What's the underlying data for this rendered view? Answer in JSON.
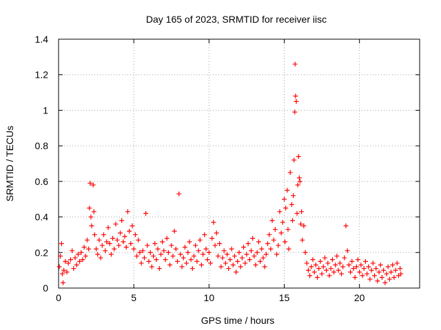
{
  "chart_data": {
    "type": "scatter",
    "title": "Day 165 of 2023, SRMTID for receiver iisc",
    "xlabel": "GPS time / hours",
    "ylabel": "SRMTID / TECUs",
    "xlim": [
      0,
      24
    ],
    "ylim": [
      0,
      1.4
    ],
    "x_ticks": [
      0,
      5,
      10,
      15,
      20
    ],
    "x_tick_labels": [
      "0",
      "5",
      "10",
      "15",
      "20"
    ],
    "y_ticks": [
      0,
      0.2,
      0.4,
      0.6,
      0.8,
      1,
      1.2,
      1.4
    ],
    "y_tick_labels": [
      "0",
      "0.2",
      "0.4",
      "0.6",
      "0.8",
      "1",
      "1.2",
      "1.4"
    ],
    "grid": true,
    "marker": "+",
    "colors": {
      "series": "#ff0000",
      "axes": "#000000",
      "grid": "#a0a0a0"
    },
    "series": [
      {
        "name": "SRMTID",
        "points": [
          [
            0.05,
            0.12
          ],
          [
            0.12,
            0.18
          ],
          [
            0.2,
            0.25
          ],
          [
            0.25,
            0.08
          ],
          [
            0.3,
            0.03
          ],
          [
            0.35,
            0.1
          ],
          [
            0.45,
            0.15
          ],
          [
            0.55,
            0.09
          ],
          [
            0.65,
            0.14
          ],
          [
            0.8,
            0.16
          ],
          [
            0.9,
            0.21
          ],
          [
            1.0,
            0.11
          ],
          [
            1.1,
            0.17
          ],
          [
            1.2,
            0.13
          ],
          [
            1.3,
            0.19
          ],
          [
            1.4,
            0.15
          ],
          [
            1.5,
            0.2
          ],
          [
            1.6,
            0.16
          ],
          [
            1.7,
            0.23
          ],
          [
            1.8,
            0.18
          ],
          [
            1.9,
            0.27
          ],
          [
            2.0,
            0.22
          ],
          [
            2.05,
            0.45
          ],
          [
            2.1,
            0.59
          ],
          [
            2.15,
            0.4
          ],
          [
            2.2,
            0.35
          ],
          [
            2.3,
            0.58
          ],
          [
            2.35,
            0.43
          ],
          [
            2.4,
            0.3
          ],
          [
            2.5,
            0.22
          ],
          [
            2.6,
            0.19
          ],
          [
            2.7,
            0.27
          ],
          [
            2.8,
            0.17
          ],
          [
            2.9,
            0.24
          ],
          [
            3.0,
            0.3
          ],
          [
            3.1,
            0.21
          ],
          [
            3.2,
            0.26
          ],
          [
            3.3,
            0.34
          ],
          [
            3.4,
            0.25
          ],
          [
            3.5,
            0.19
          ],
          [
            3.6,
            0.28
          ],
          [
            3.7,
            0.22
          ],
          [
            3.8,
            0.36
          ],
          [
            3.9,
            0.27
          ],
          [
            4.0,
            0.24
          ],
          [
            4.1,
            0.31
          ],
          [
            4.2,
            0.38
          ],
          [
            4.3,
            0.26
          ],
          [
            4.4,
            0.29
          ],
          [
            4.5,
            0.23
          ],
          [
            4.6,
            0.43
          ],
          [
            4.7,
            0.32
          ],
          [
            4.8,
            0.25
          ],
          [
            4.9,
            0.35
          ],
          [
            5.0,
            0.22
          ],
          [
            5.1,
            0.3
          ],
          [
            5.2,
            0.18
          ],
          [
            5.3,
            0.27
          ],
          [
            5.4,
            0.2
          ],
          [
            5.5,
            0.14
          ],
          [
            5.6,
            0.21
          ],
          [
            5.7,
            0.17
          ],
          [
            5.8,
            0.42
          ],
          [
            5.9,
            0.24
          ],
          [
            6.0,
            0.15
          ],
          [
            6.1,
            0.2
          ],
          [
            6.2,
            0.12
          ],
          [
            6.3,
            0.18
          ],
          [
            6.4,
            0.25
          ],
          [
            6.5,
            0.16
          ],
          [
            6.6,
            0.22
          ],
          [
            6.7,
            0.11
          ],
          [
            6.8,
            0.19
          ],
          [
            6.9,
            0.26
          ],
          [
            7.0,
            0.21
          ],
          [
            7.1,
            0.16
          ],
          [
            7.2,
            0.28
          ],
          [
            7.3,
            0.2
          ],
          [
            7.4,
            0.13
          ],
          [
            7.5,
            0.24
          ],
          [
            7.6,
            0.18
          ],
          [
            7.7,
            0.32
          ],
          [
            7.8,
            0.22
          ],
          [
            7.9,
            0.15
          ],
          [
            8.0,
            0.53
          ],
          [
            8.1,
            0.19
          ],
          [
            8.2,
            0.12
          ],
          [
            8.3,
            0.17
          ],
          [
            8.4,
            0.23
          ],
          [
            8.5,
            0.14
          ],
          [
            8.6,
            0.2
          ],
          [
            8.7,
            0.26
          ],
          [
            8.8,
            0.16
          ],
          [
            8.9,
            0.11
          ],
          [
            9.0,
            0.18
          ],
          [
            9.1,
            0.24
          ],
          [
            9.2,
            0.15
          ],
          [
            9.3,
            0.21
          ],
          [
            9.4,
            0.27
          ],
          [
            9.5,
            0.13
          ],
          [
            9.6,
            0.19
          ],
          [
            9.7,
            0.3
          ],
          [
            9.8,
            0.22
          ],
          [
            9.9,
            0.16
          ],
          [
            10.0,
            0.2
          ],
          [
            10.1,
            0.14
          ],
          [
            10.2,
            0.28
          ],
          [
            10.3,
            0.37
          ],
          [
            10.4,
            0.24
          ],
          [
            10.5,
            0.31
          ],
          [
            10.6,
            0.18
          ],
          [
            10.7,
            0.25
          ],
          [
            10.8,
            0.12
          ],
          [
            10.9,
            0.17
          ],
          [
            11.0,
            0.21
          ],
          [
            11.1,
            0.14
          ],
          [
            11.2,
            0.19
          ],
          [
            11.3,
            0.11
          ],
          [
            11.4,
            0.16
          ],
          [
            11.5,
            0.22
          ],
          [
            11.6,
            0.13
          ],
          [
            11.7,
            0.18
          ],
          [
            11.8,
            0.09
          ],
          [
            11.9,
            0.15
          ],
          [
            12.0,
            0.2
          ],
          [
            12.1,
            0.12
          ],
          [
            12.2,
            0.17
          ],
          [
            12.3,
            0.23
          ],
          [
            12.4,
            0.14
          ],
          [
            12.5,
            0.19
          ],
          [
            12.6,
            0.25
          ],
          [
            12.7,
            0.16
          ],
          [
            12.8,
            0.21
          ],
          [
            12.9,
            0.28
          ],
          [
            13.0,
            0.18
          ],
          [
            13.1,
            0.13
          ],
          [
            13.2,
            0.2
          ],
          [
            13.3,
            0.26
          ],
          [
            13.4,
            0.15
          ],
          [
            13.5,
            0.22
          ],
          [
            13.6,
            0.17
          ],
          [
            13.7,
            0.12
          ],
          [
            13.8,
            0.19
          ],
          [
            13.9,
            0.25
          ],
          [
            14.0,
            0.3
          ],
          [
            14.1,
            0.22
          ],
          [
            14.2,
            0.38
          ],
          [
            14.3,
            0.27
          ],
          [
            14.4,
            0.33
          ],
          [
            14.5,
            0.19
          ],
          [
            14.6,
            0.24
          ],
          [
            14.7,
            0.43
          ],
          [
            14.8,
            0.31
          ],
          [
            14.9,
            0.37
          ],
          [
            15.0,
            0.5
          ],
          [
            15.05,
            0.26
          ],
          [
            15.1,
            0.45
          ],
          [
            15.2,
            0.55
          ],
          [
            15.25,
            0.33
          ],
          [
            15.3,
            0.22
          ],
          [
            15.4,
            0.65
          ],
          [
            15.5,
            0.47
          ],
          [
            15.55,
            0.38
          ],
          [
            15.6,
            0.52
          ],
          [
            15.65,
            0.72
          ],
          [
            15.7,
            0.99
          ],
          [
            15.72,
            1.26
          ],
          [
            15.75,
            1.08
          ],
          [
            15.8,
            1.05
          ],
          [
            15.85,
            0.42
          ],
          [
            15.9,
            0.58
          ],
          [
            15.95,
            0.74
          ],
          [
            16.0,
            0.62
          ],
          [
            16.05,
            0.6
          ],
          [
            16.1,
            0.36
          ],
          [
            16.15,
            0.43
          ],
          [
            16.2,
            0.27
          ],
          [
            16.3,
            0.35
          ],
          [
            16.4,
            0.2
          ],
          [
            16.5,
            0.14
          ],
          [
            16.6,
            0.1
          ],
          [
            16.7,
            0.07
          ],
          [
            16.8,
            0.12
          ],
          [
            16.9,
            0.16
          ],
          [
            17.0,
            0.09
          ],
          [
            17.1,
            0.13
          ],
          [
            17.2,
            0.06
          ],
          [
            17.3,
            0.11
          ],
          [
            17.4,
            0.15
          ],
          [
            17.5,
            0.08
          ],
          [
            17.6,
            0.12
          ],
          [
            17.7,
            0.17
          ],
          [
            17.8,
            0.1
          ],
          [
            17.9,
            0.14
          ],
          [
            18.0,
            0.07
          ],
          [
            18.1,
            0.11
          ],
          [
            18.2,
            0.16
          ],
          [
            18.3,
            0.09
          ],
          [
            18.4,
            0.13
          ],
          [
            18.5,
            0.18
          ],
          [
            18.6,
            0.1
          ],
          [
            18.7,
            0.14
          ],
          [
            18.8,
            0.08
          ],
          [
            18.9,
            0.12
          ],
          [
            19.0,
            0.17
          ],
          [
            19.1,
            0.35
          ],
          [
            19.2,
            0.21
          ],
          [
            19.3,
            0.13
          ],
          [
            19.4,
            0.09
          ],
          [
            19.5,
            0.15
          ],
          [
            19.6,
            0.11
          ],
          [
            19.7,
            0.06
          ],
          [
            19.8,
            0.12
          ],
          [
            19.9,
            0.16
          ],
          [
            20.0,
            0.09
          ],
          [
            20.1,
            0.13
          ],
          [
            20.2,
            0.07
          ],
          [
            20.3,
            0.11
          ],
          [
            20.4,
            0.15
          ],
          [
            20.5,
            0.08
          ],
          [
            20.6,
            0.12
          ],
          [
            20.7,
            0.05
          ],
          [
            20.8,
            0.1
          ],
          [
            20.9,
            0.14
          ],
          [
            21.0,
            0.07
          ],
          [
            21.1,
            0.11
          ],
          [
            21.2,
            0.04
          ],
          [
            21.3,
            0.09
          ],
          [
            21.4,
            0.13
          ],
          [
            21.5,
            0.06
          ],
          [
            21.6,
            0.1
          ],
          [
            21.7,
            0.03
          ],
          [
            21.8,
            0.08
          ],
          [
            21.9,
            0.12
          ],
          [
            22.0,
            0.05
          ],
          [
            22.1,
            0.09
          ],
          [
            22.2,
            0.13
          ],
          [
            22.3,
            0.06
          ],
          [
            22.4,
            0.1
          ],
          [
            22.5,
            0.14
          ],
          [
            22.6,
            0.07
          ],
          [
            22.7,
            0.11
          ],
          [
            22.75,
            0.08
          ]
        ]
      }
    ]
  }
}
